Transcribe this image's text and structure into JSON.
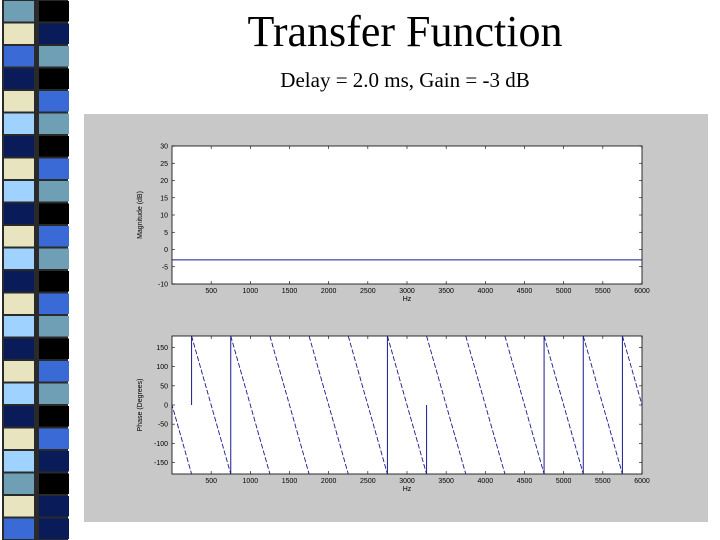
{
  "slide": {
    "title": "Transfer Function",
    "subtitle": "Delay = 2.0 ms, Gain = -3 dB"
  },
  "stripe": {
    "colors": [
      "#6f9fb5",
      "#0a1b5a",
      "#3a6ad6",
      "#000000",
      "#e8e4c0",
      "#6f9fb5",
      "#0a1b5a",
      "#3a6ad6",
      "#9fd2ff",
      "#000000",
      "#e8e4c0",
      "#6f9fb5",
      "#0a1b5a",
      "#3a6ad6",
      "#9fd2ff",
      "#000000",
      "#e8e4c0",
      "#6f9fb5",
      "#0a1b5a",
      "#3a6ad6",
      "#9fd2ff",
      "#000000",
      "#e8e4c0",
      "#0a1b5a"
    ]
  },
  "chart_data": [
    {
      "type": "line",
      "ylabel": "Magnitude (dB)",
      "xlabel": "Hz",
      "xlim": [
        0,
        6000
      ],
      "ylim": [
        -10,
        30
      ],
      "x_ticks": [
        500,
        1000,
        1500,
        2000,
        2500,
        3000,
        3500,
        4000,
        4500,
        5000,
        5500,
        6000
      ],
      "x_tick_labels": [
        "500",
        "1000",
        "1500",
        "2000",
        "2500",
        "3000",
        "3500",
        "4000",
        "4500",
        "5000",
        "5500",
        "6000"
      ],
      "y_ticks": [
        30,
        25,
        20,
        15,
        10,
        5,
        0,
        -5,
        -10
      ],
      "y_tick_labels": [
        "30",
        "25",
        "20",
        "15",
        "10",
        "5",
        "0",
        "-5",
        "-10"
      ],
      "series": [
        {
          "x": [
            0,
            6000
          ],
          "y": [
            -3,
            -3
          ],
          "color": "#1a1a8c"
        }
      ]
    },
    {
      "type": "line",
      "ylabel": "Phase (Degrees)",
      "xlabel": "Hz",
      "xlim": [
        0,
        6000
      ],
      "ylim": [
        -180,
        180
      ],
      "x_ticks": [
        500,
        1000,
        1500,
        2000,
        2500,
        3000,
        3500,
        4000,
        4500,
        5000,
        5500,
        6000
      ],
      "x_tick_labels": [
        "500",
        "1000",
        "1500",
        "2000",
        "2500",
        "3000",
        "3500",
        "4000",
        "4500",
        "5000",
        "5500",
        "6000"
      ],
      "y_ticks": [
        150,
        100,
        50,
        0,
        -50,
        -100,
        -150
      ],
      "y_tick_labels": [
        "150",
        "100",
        "50",
        "0",
        "-50",
        "-100",
        "-150"
      ],
      "phase": {
        "period_hz": 500,
        "offset_hz": 250
      },
      "vertical_lines": [
        {
          "x": 250,
          "y_from": 180,
          "y_to": 0
        },
        {
          "x": 750,
          "y_from": 180,
          "y_to": -180
        },
        {
          "x": 2750,
          "y_from": 180,
          "y_to": -180
        },
        {
          "x": 3250,
          "y_from": 0,
          "y_to": -180
        },
        {
          "x": 4750,
          "y_from": 180,
          "y_to": -180
        },
        {
          "x": 5250,
          "y_from": 180,
          "y_to": -180
        },
        {
          "x": 5750,
          "y_from": 180,
          "y_to": -180
        }
      ],
      "color": "#1a1a8c"
    }
  ]
}
